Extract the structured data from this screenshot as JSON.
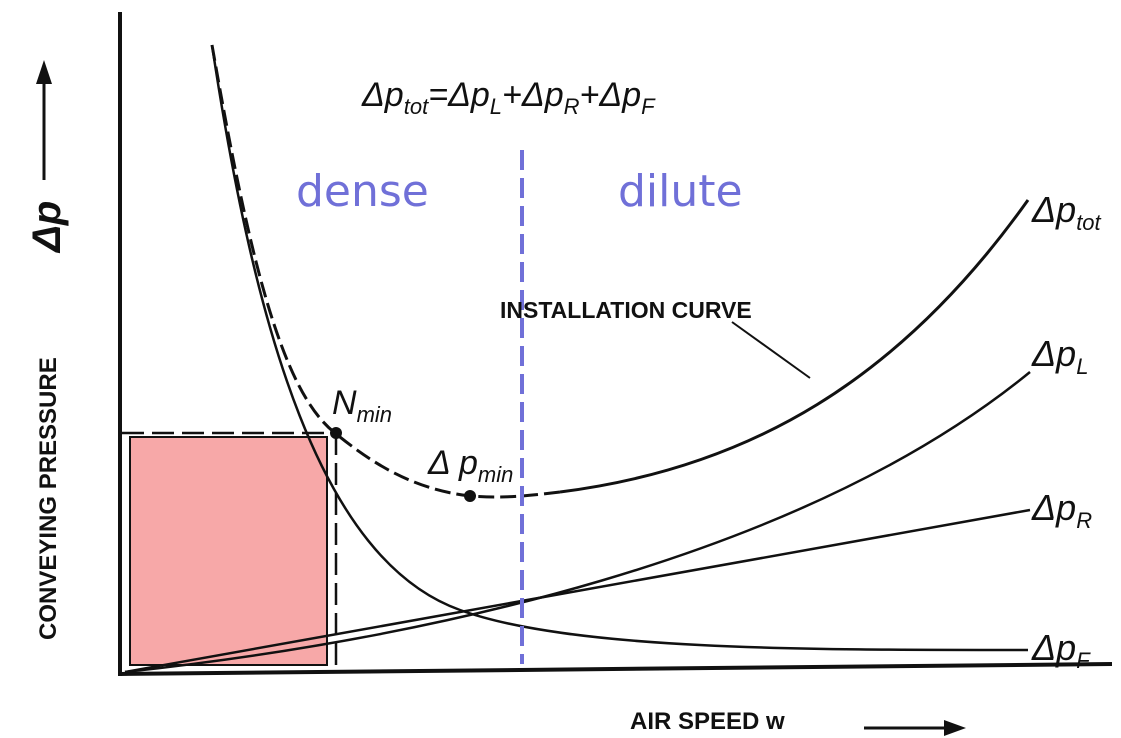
{
  "equation": {
    "lhs": "Δp",
    "lhs_sub": "tot",
    "rhs": [
      {
        "sign": "=",
        "sym": "Δp",
        "sub": "L"
      },
      {
        "sign": "+",
        "sym": "Δp",
        "sub": "R"
      },
      {
        "sign": "+",
        "sym": "Δp",
        "sub": "F"
      }
    ]
  },
  "y_axis": {
    "label": "CONVEYING PRESSURE",
    "symbol": "Δp",
    "arrow": "up-arrow"
  },
  "x_axis": {
    "label": "AIR SPEED w",
    "arrow": "right-arrow"
  },
  "regions": {
    "dense": "dense",
    "dilute": "dilute",
    "divider_color": "#7070d8"
  },
  "curves": {
    "total": {
      "sym": "Δp",
      "sub": "tot"
    },
    "l": {
      "sym": "Δp",
      "sub": "L"
    },
    "r": {
      "sym": "Δp",
      "sub": "R"
    },
    "f": {
      "sym": "Δp",
      "sub": "F"
    }
  },
  "installation_curve": "INSTALLATION CURVE",
  "points": {
    "n_min": {
      "sym": "N",
      "sub": "min"
    },
    "dp_min": {
      "sym": "Δ p",
      "sub": "min"
    }
  },
  "colors": {
    "ink": "#111111",
    "operating_area": "#f7a8a8",
    "region_text": "#7070d8"
  }
}
